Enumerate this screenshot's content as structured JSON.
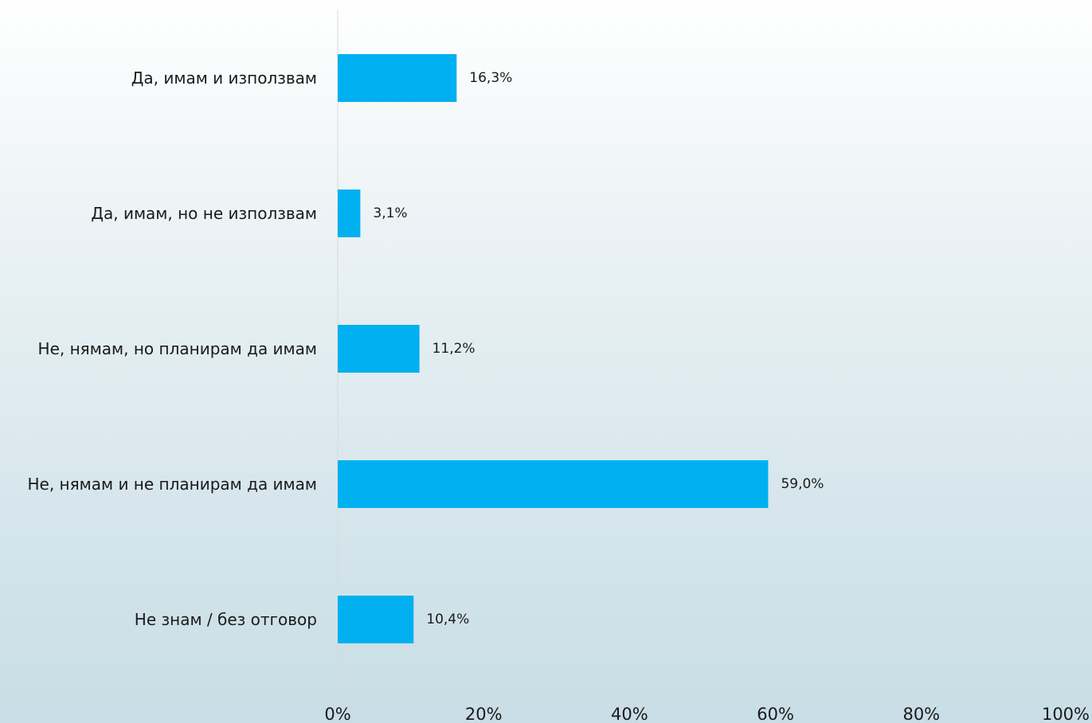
{
  "chart_data": {
    "type": "bar",
    "orientation": "horizontal",
    "categories": [
      "Да, имам и използвам",
      "Да, имам, но не използвам",
      "Не, нямам, но планирам да имам",
      "Не, нямам и не планирам да имам",
      "Не знам / без отговор"
    ],
    "values": [
      16.3,
      3.1,
      11.2,
      59.0,
      10.4
    ],
    "data_labels": [
      "16,3%",
      "3,1%",
      "11,2%",
      "59,0%",
      "10,4%"
    ],
    "xlim": [
      0,
      100
    ],
    "x_ticks": [
      "0%",
      "20%",
      "40%",
      "60%",
      "80%",
      "100%"
    ],
    "title": "",
    "xlabel": "",
    "ylabel": "",
    "grid": false,
    "legend": "none",
    "bar_color": "#00b0f0",
    "axis_color": "#d9d9d9",
    "text_color": "#1a1a1a"
  }
}
